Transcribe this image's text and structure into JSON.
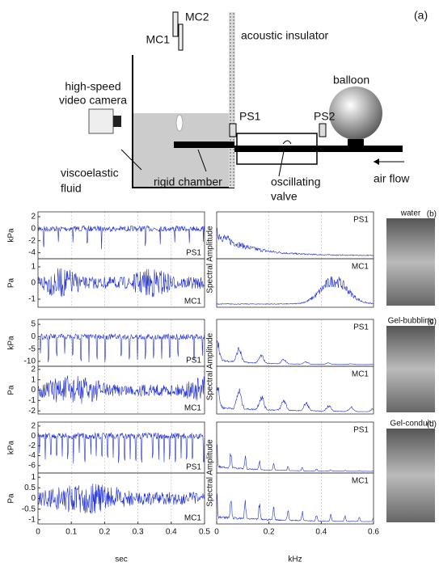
{
  "diagram": {
    "panel_label": "(a)",
    "mc2": "MC2",
    "mc1": "MC1",
    "insulator": "acoustic insulator",
    "camera": [
      "high-speed",
      "video camera"
    ],
    "ps1": "PS1",
    "ps2": "PS2",
    "balloon": "balloon",
    "fluid": [
      "viscoelastic",
      "fluid"
    ],
    "chamber": "rigid chamber",
    "valve": [
      "oscillating",
      "valve"
    ],
    "airflow": "air flow"
  },
  "rows": [
    {
      "panel_label": "(b)",
      "photo_label": "water",
      "pressure": {
        "unit": "kPa",
        "sensor": "PS1",
        "ylim": [
          -5,
          2.8
        ],
        "yticks": [
          2,
          0,
          -2,
          -4
        ]
      },
      "acoustic": {
        "unit": "Pa",
        "sensor": "MC1",
        "ylim": [
          -1.5,
          1.5
        ],
        "yticks": [
          1,
          0,
          -1
        ]
      }
    },
    {
      "panel_label": "(c)",
      "photo_label": "Gel-bubbling",
      "pressure": {
        "unit": "kPa",
        "sensor": "PS1",
        "ylim": [
          -12,
          7
        ],
        "yticks": [
          5,
          0,
          -5,
          -10
        ]
      },
      "acoustic": {
        "unit": "Pa",
        "sensor": "MC1",
        "ylim": [
          -2.3,
          2.3
        ],
        "yticks": [
          2,
          1,
          0,
          -1,
          -2
        ]
      }
    },
    {
      "panel_label": "(d)",
      "photo_label": "Gel-conduit",
      "pressure": {
        "unit": "kPa",
        "sensor": "PS1",
        "ylim": [
          -7.5,
          2.8
        ],
        "yticks": [
          2,
          0,
          -2,
          -4,
          -6
        ]
      },
      "acoustic": {
        "unit": "Pa",
        "sensor": "MC1",
        "ylim": [
          -1.2,
          1.2
        ],
        "yticks": [
          1,
          0.5,
          0,
          -0.5,
          -1
        ]
      }
    }
  ],
  "spectral_label": "Spectral Amplitude",
  "time_axis": {
    "label": "sec",
    "xlim": [
      0,
      0.5
    ],
    "xticks": [
      0,
      0.1,
      0.2,
      0.3,
      0.4,
      0.5
    ]
  },
  "freq_axis": {
    "label": "kHz",
    "xlim": [
      0,
      0.6
    ],
    "xticks": [
      0,
      0.2,
      0.4,
      0.6
    ]
  }
}
